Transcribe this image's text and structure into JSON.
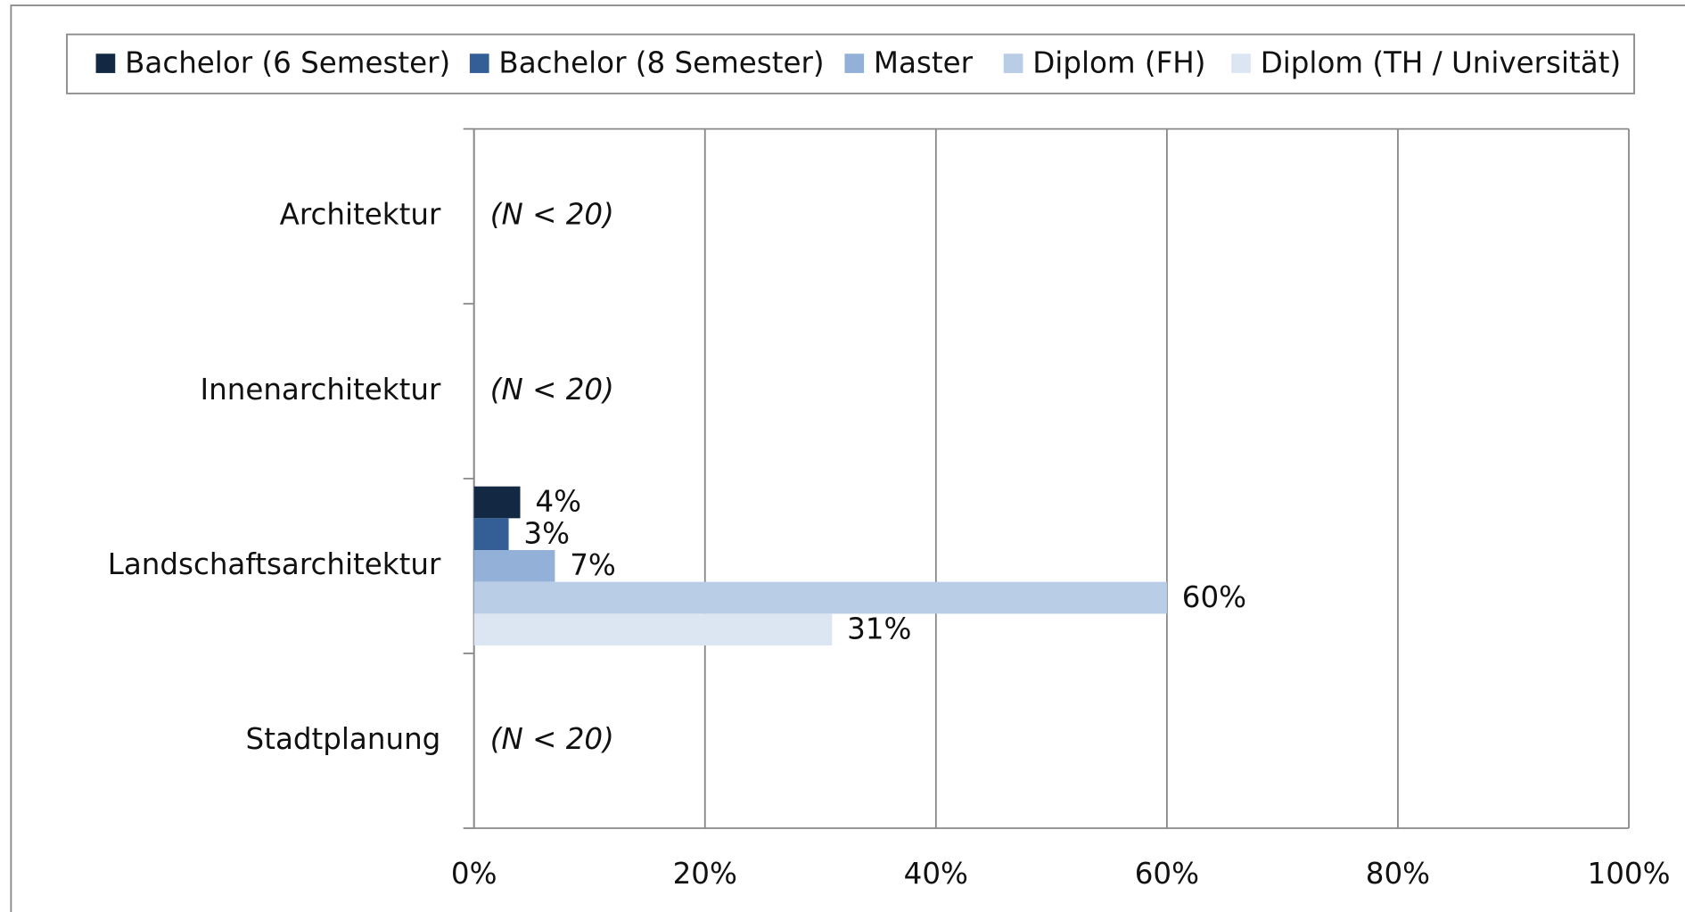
{
  "chart_data": {
    "type": "hbar",
    "categories": [
      "Architektur",
      "Innenarchitektur",
      "Landschaftsarchitektur",
      "Stadtplanung"
    ],
    "notes": [
      "(N < 20)",
      "(N < 20)",
      null,
      "(N < 20)"
    ],
    "series": [
      {
        "name": "Bachelor (6 Semester)",
        "color": "#132843",
        "values": [
          null,
          null,
          4,
          null
        ],
        "value_labels": [
          null,
          null,
          "4%",
          null
        ]
      },
      {
        "name": "Bachelor (8 Semester)",
        "color": "#335f96",
        "values": [
          null,
          null,
          3,
          null
        ],
        "value_labels": [
          null,
          null,
          "3%",
          null
        ]
      },
      {
        "name": "Master",
        "color": "#93b1d8",
        "values": [
          null,
          null,
          7,
          null
        ],
        "value_labels": [
          null,
          null,
          "7%",
          null
        ]
      },
      {
        "name": "Diplom (FH)",
        "color": "#b9cde6",
        "values": [
          null,
          null,
          60,
          null
        ],
        "value_labels": [
          null,
          null,
          "60%",
          null
        ]
      },
      {
        "name": "Diplom (TH / Universität)",
        "color": "#dce6f3",
        "values": [
          null,
          null,
          31,
          null
        ],
        "value_labels": [
          null,
          null,
          "31%",
          null
        ]
      }
    ],
    "xlim": [
      0,
      100
    ],
    "xticks": [
      {
        "value": 0,
        "label": "0%"
      },
      {
        "value": 20,
        "label": "20%"
      },
      {
        "value": 40,
        "label": "40%"
      },
      {
        "value": 60,
        "label": "60%"
      },
      {
        "value": 80,
        "label": "80%"
      },
      {
        "value": 100,
        "label": "100%"
      }
    ],
    "grid": true,
    "legend": "top"
  }
}
